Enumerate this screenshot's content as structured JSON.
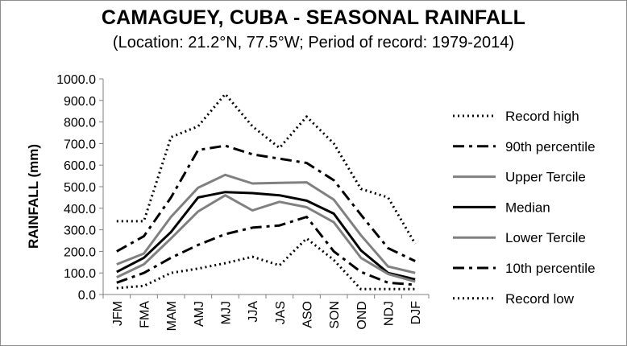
{
  "chart_data": {
    "type": "line",
    "title": "CAMAGUEY, CUBA - SEASONAL RAINFALL",
    "subtitle": "(Location: 21.2°N, 77.5°W; Period of record: 1979-2014)",
    "xlabel": "",
    "ylabel": "RAINFALL (mm)",
    "ylim": [
      0,
      1000
    ],
    "ytick_step": 100,
    "ytick_format_decimals": 1,
    "grid": false,
    "legend_position": "right",
    "categories": [
      "JFM",
      "FMA",
      "MAM",
      "AMJ",
      "MJJ",
      "JJA",
      "JAS",
      "ASO",
      "SON",
      "OND",
      "NDJ",
      "DJF"
    ],
    "series": [
      {
        "name": "Record high",
        "style": "dotted",
        "color": "#000000",
        "values": [
          340,
          340,
          730,
          780,
          930,
          780,
          680,
          825,
          700,
          490,
          450,
          235
        ]
      },
      {
        "name": "90th percentile",
        "style": "dashdot",
        "color": "#000000",
        "values": [
          200,
          270,
          450,
          670,
          690,
          650,
          630,
          610,
          530,
          370,
          215,
          155
        ]
      },
      {
        "name": "Upper Tercile",
        "style": "solid",
        "color": "#808080",
        "values": [
          140,
          190,
          360,
          495,
          555,
          515,
          518,
          520,
          440,
          275,
          130,
          100
        ]
      },
      {
        "name": "Median",
        "style": "solid",
        "color": "#000000",
        "values": [
          105,
          170,
          290,
          450,
          475,
          470,
          460,
          435,
          375,
          205,
          100,
          70
        ]
      },
      {
        "name": "Lower Tercile",
        "style": "solid",
        "color": "#808080",
        "values": [
          80,
          140,
          260,
          385,
          460,
          390,
          430,
          405,
          335,
          170,
          95,
          60
        ]
      },
      {
        "name": "10th percentile",
        "style": "dashdot",
        "color": "#000000",
        "values": [
          55,
          100,
          170,
          230,
          280,
          310,
          320,
          360,
          200,
          105,
          55,
          45
        ]
      },
      {
        "name": "Record low",
        "style": "dotted",
        "color": "#000000",
        "values": [
          30,
          40,
          100,
          120,
          145,
          175,
          135,
          260,
          160,
          25,
          25,
          25
        ]
      }
    ]
  }
}
